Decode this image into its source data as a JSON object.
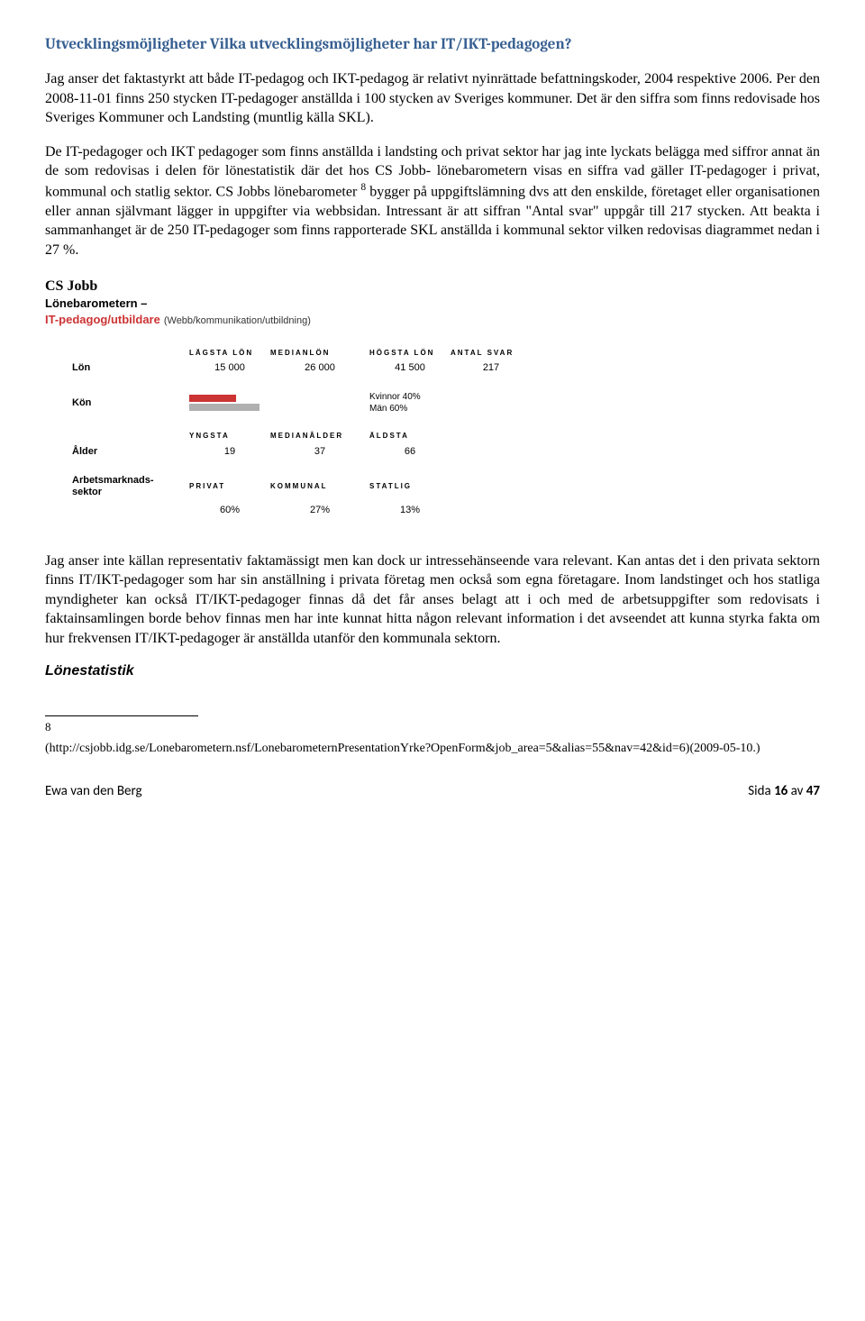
{
  "title": "Utvecklingsmöjligheter Vilka utvecklingsmöjligheter har IT/IKT-pedagogen?",
  "para1": "Jag anser det faktastyrkt att både IT-pedagog och IKT-pedagog är relativt nyinrättade befattningskoder, 2004 respektive 2006. Per den 2008-11-01 finns 250 stycken IT-pedagoger anställda i 100 stycken av Sveriges kommuner. Det är den siffra som finns redovisade hos Sveriges Kommuner och Landsting (muntlig källa SKL).",
  "para2a": "De IT-pedagoger och IKT pedagoger som finns anställda i landsting och privat sektor har jag inte lyckats belägga med siffror annat än de som redovisas i delen för lönestatistik där det hos CS Jobb- lönebarometern visas en siffra vad gäller IT-pedagoger i privat, kommunal och statlig sektor. CS Jobbs lönebarometer ",
  "para2b": " bygger på uppgiftslämning dvs att den enskilde, företaget eller organisationen eller annan självmant lägger in uppgifter via webbsidan. Intressant är att siffran \"Antal svar\" uppgår till 217 stycken. Att beakta i sammanhanget är de 250 IT-pedagoger som finns rapporterade SKL anställda i kommunal sektor vilken redovisas diagrammet nedan i 27 %.",
  "csjobb": {
    "brand": "CS Jobb",
    "sub": "Lönebarometern –",
    "red": "IT-pedagog/utbildare",
    "paren": "(Webb/kommunikation/utbildning)"
  },
  "barometer": {
    "headers_lon": {
      "c1": "LÄGSTA LÖN",
      "c2": "MEDIANLÖN",
      "c3": "HÖGSTA LÖN",
      "c4": "ANTAL SVAR"
    },
    "lon_label": "Lön",
    "lon": {
      "v1": "15 000",
      "v2": "26 000",
      "v3": "41 500",
      "v4": "217"
    },
    "kon_label": "Kön",
    "gender_f": "Kvinnor 40%",
    "gender_m": "Män 60%",
    "headers_alder": {
      "c1": "YNGSTA",
      "c2": "MEDIANÅLDER",
      "c3": "ÄLDSTA"
    },
    "alder_label": "Ålder",
    "alder": {
      "v1": "19",
      "v2": "37",
      "v3": "66"
    },
    "sector_label1": "Arbetsmarknads-",
    "sector_label2": "sektor",
    "headers_sector": {
      "c1": "PRIVAT",
      "c2": "KOMMUNAL",
      "c3": "STATLIG"
    },
    "sector": {
      "v1": "60%",
      "v2": "27%",
      "v3": "13%"
    }
  },
  "para3": "Jag anser inte källan representativ faktamässigt men kan dock ur intressehänseende vara relevant. Kan antas det i den privata sektorn finns IT/IKT-pedagoger som har sin anställning i privata företag men också som egna företagare. Inom landstinget och hos statliga myndigheter kan också IT/IKT-pedagoger finnas då det får anses belagt att i och med de arbetsuppgifter som redovisats i faktainsamlingen borde behov finnas men har inte kunnat hitta någon relevant information i det avseendet att kunna styrka fakta om hur frekvensen IT/IKT-pedagoger är anställda utanför den kommunala sektorn.",
  "subheading": "Lönestatistik",
  "footnote_num": "8",
  "footnote_text": "(http://csjobb.idg.se/Lonebarometern.nsf/LonebarometernPresentationYrke?OpenForm&job_area=5&alias=55&nav=42&id=6)(2009-05-10.)",
  "footer_left": "Ewa van den Berg",
  "footer_right_a": "Sida ",
  "footer_right_b": "16",
  "footer_right_c": " av ",
  "footer_right_d": "47"
}
